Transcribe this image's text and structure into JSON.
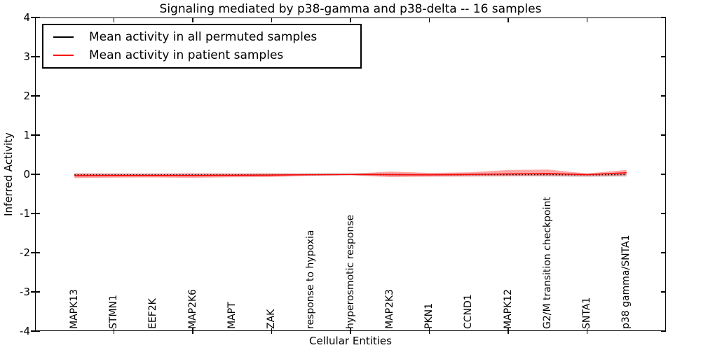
{
  "title": "Signaling mediated by p38-gamma and p38-delta -- 16 samples",
  "axes": {
    "xlabel": "Cellular Entities",
    "ylabel": "Inferred Activity"
  },
  "legend": {
    "items": [
      {
        "label": "Mean activity in all permuted samples",
        "color": "#000000"
      },
      {
        "label": "Mean activity in patient samples",
        "color": "#ff0000"
      }
    ]
  },
  "colors": {
    "background": "#ffffff",
    "axis": "#000000",
    "permuted_line": "#000000",
    "patient_line": "#ff0000"
  },
  "chart_data": {
    "type": "line",
    "title": "Signaling mediated by p38-gamma and p38-delta -- 16 samples",
    "xlabel": "Cellular Entities",
    "ylabel": "Inferred Activity",
    "ylim": [
      -4,
      4
    ],
    "xlim": [
      0,
      16
    ],
    "yticks": [
      "4",
      "3",
      "2",
      "1",
      "0",
      "-1",
      "-2",
      "-3",
      "-4"
    ],
    "ytick_values": [
      4,
      3,
      2,
      1,
      0,
      -1,
      -2,
      -3,
      -4
    ],
    "grid": false,
    "legend_position": "upper left",
    "categories": [
      "MAPK13",
      "STMN1",
      "EEF2K",
      "MAP2K6",
      "MAPT",
      "ZAK",
      "response to hypoxia",
      "hyperosmotic response",
      "MAP2K3",
      "PKN1",
      "CCND1",
      "MAPK12",
      "G2/M transition checkpoint",
      "SNTA1",
      "p38 gamma/SNTA1"
    ],
    "series": [
      {
        "name": "Mean activity in all permuted samples",
        "color": "#000000",
        "line_style": "dotted",
        "values": [
          -0.015,
          -0.015,
          -0.015,
          -0.015,
          -0.015,
          -0.015,
          -0.01,
          -0.005,
          -0.01,
          -0.015,
          -0.01,
          -0.01,
          -0.01,
          -0.015,
          -0.01
        ],
        "band_upper": [
          0.025,
          0.025,
          0.02,
          0.025,
          0.025,
          0.03,
          0.035,
          0.04,
          0.03,
          0.025,
          0.03,
          0.03,
          0.03,
          0.03,
          0.03
        ],
        "band_lower": [
          -0.06,
          -0.055,
          -0.055,
          -0.06,
          -0.055,
          -0.05,
          -0.04,
          -0.03,
          -0.05,
          -0.05,
          -0.05,
          -0.05,
          -0.06,
          -0.07,
          -0.065
        ],
        "band_opacity": 0.13
      },
      {
        "name": "Mean activity in patient samples",
        "color": "#ff0000",
        "line_style": "solid",
        "values": [
          -0.035,
          -0.03,
          -0.03,
          -0.03,
          -0.025,
          -0.02,
          -0.01,
          -0.005,
          -0.01,
          -0.015,
          -0.005,
          0.01,
          0.02,
          -0.01,
          0.04
        ],
        "band_upper": [
          0.025,
          0.02,
          0.02,
          0.025,
          0.02,
          0.02,
          0.01,
          0.01,
          0.07,
          0.035,
          0.05,
          0.11,
          0.12,
          0.02,
          0.11
        ],
        "band_lower": [
          -0.095,
          -0.085,
          -0.08,
          -0.09,
          -0.075,
          -0.07,
          -0.035,
          -0.025,
          -0.07,
          -0.06,
          -0.055,
          -0.05,
          -0.04,
          -0.05,
          -0.03
        ],
        "band_opacity": 0.35
      }
    ]
  }
}
